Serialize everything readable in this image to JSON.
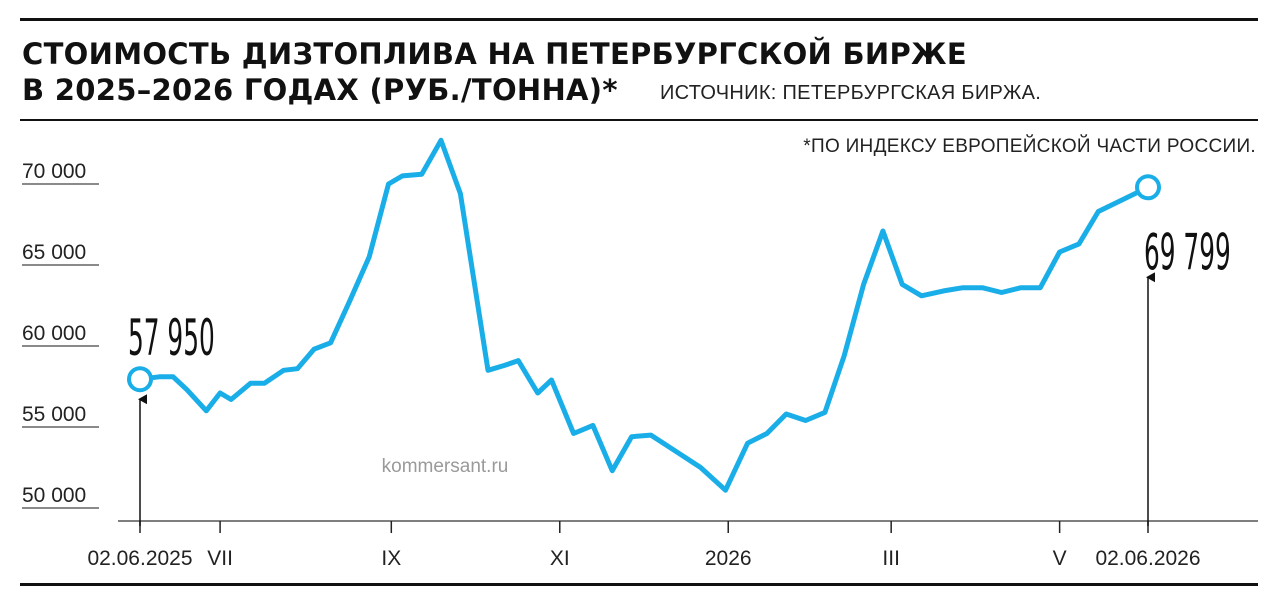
{
  "header": {
    "title_line1": "СТОИМОСТЬ ДИЗТОПЛИВА НА ПЕТЕРБУРГСКОЙ БИРЖЕ",
    "title_line2": "В 2025–2026 ГОДАХ (РУБ./ТОННА)*",
    "source": "ИСТОЧНИК: ПЕТЕРБУРГСКАЯ БИРЖА.",
    "footnote": "*ПО ИНДЕКСУ ЕВРОПЕЙСКОЙ ЧАСТИ РОССИИ."
  },
  "watermark": "kommersant.ru",
  "colors": {
    "line": "#1aaee8",
    "text": "#111111",
    "background": "#ffffff"
  },
  "chart_data": {
    "type": "line",
    "title": "СТОИМОСТЬ ДИЗТОПЛИВА НА ПЕТЕРБУРГСКОЙ БИРЖЕ В 2025–2026 ГОДАХ (РУБ./ТОННА)*",
    "xlabel": "",
    "ylabel": "",
    "ylim": [
      50000,
      72000
    ],
    "xlim": [
      "2025-06-02",
      "2026-06-02"
    ],
    "y_ticks": [
      {
        "value": 50000,
        "label": "50 000"
      },
      {
        "value": 55000,
        "label": "55 000"
      },
      {
        "value": 60000,
        "label": "60 000"
      },
      {
        "value": 65000,
        "label": "65 000"
      },
      {
        "value": 70000,
        "label": "70 000"
      }
    ],
    "x_ticks": [
      {
        "date": "2025-06-02",
        "label": "02.06.2025"
      },
      {
        "date": "2025-07-01",
        "label": "VII"
      },
      {
        "date": "2025-09-01",
        "label": "IX"
      },
      {
        "date": "2025-11-01",
        "label": "XI"
      },
      {
        "date": "2026-01-01",
        "label": "2026"
      },
      {
        "date": "2026-03-01",
        "label": "III"
      },
      {
        "date": "2026-05-01",
        "label": "V"
      },
      {
        "date": "2026-06-02",
        "label": "02.06.2026"
      }
    ],
    "grid": false,
    "series": [
      {
        "points": [
          [
            "2025-06-02",
            57950
          ],
          [
            "2025-06-09",
            58100
          ],
          [
            "2025-06-14",
            58100
          ],
          [
            "2025-06-19",
            57300
          ],
          [
            "2025-06-26",
            56000
          ],
          [
            "2025-07-01",
            57100
          ],
          [
            "2025-07-05",
            56700
          ],
          [
            "2025-07-12",
            57700
          ],
          [
            "2025-07-17",
            57700
          ],
          [
            "2025-07-24",
            58500
          ],
          [
            "2025-07-29",
            58600
          ],
          [
            "2025-08-04",
            59800
          ],
          [
            "2025-08-10",
            60200
          ],
          [
            "2025-08-17",
            62800
          ],
          [
            "2025-08-24",
            65500
          ],
          [
            "2025-08-31",
            70000
          ],
          [
            "2025-09-05",
            70500
          ],
          [
            "2025-09-12",
            70600
          ],
          [
            "2025-09-19",
            72700
          ],
          [
            "2025-09-26",
            69400
          ],
          [
            "2025-10-06",
            58500
          ],
          [
            "2025-10-12",
            58800
          ],
          [
            "2025-10-17",
            59100
          ],
          [
            "2025-10-24",
            57100
          ],
          [
            "2025-10-29",
            57900
          ],
          [
            "2025-11-06",
            54600
          ],
          [
            "2025-11-13",
            55100
          ],
          [
            "2025-11-20",
            52300
          ],
          [
            "2025-11-27",
            54400
          ],
          [
            "2025-12-04",
            54500
          ],
          [
            "2025-12-13",
            53500
          ],
          [
            "2025-12-22",
            52500
          ],
          [
            "2025-12-31",
            51100
          ],
          [
            "2026-01-08",
            54000
          ],
          [
            "2026-01-15",
            54600
          ],
          [
            "2026-01-22",
            55800
          ],
          [
            "2026-01-29",
            55400
          ],
          [
            "2026-02-05",
            55900
          ],
          [
            "2026-02-12",
            59400
          ],
          [
            "2026-02-19",
            63800
          ],
          [
            "2026-02-26",
            67100
          ],
          [
            "2026-03-05",
            63800
          ],
          [
            "2026-03-12",
            63100
          ],
          [
            "2026-03-20",
            63400
          ],
          [
            "2026-03-27",
            63600
          ],
          [
            "2026-04-03",
            63600
          ],
          [
            "2026-04-10",
            63300
          ],
          [
            "2026-04-17",
            63600
          ],
          [
            "2026-04-24",
            63600
          ],
          [
            "2026-05-01",
            65800
          ],
          [
            "2026-05-08",
            66300
          ],
          [
            "2026-05-15",
            68300
          ],
          [
            "2026-06-02",
            69799
          ]
        ]
      }
    ],
    "annotations": [
      {
        "date": "2025-06-02",
        "value": 57950,
        "label": "57 950"
      },
      {
        "date": "2026-06-02",
        "value": 69799,
        "label": "69 799"
      }
    ]
  }
}
